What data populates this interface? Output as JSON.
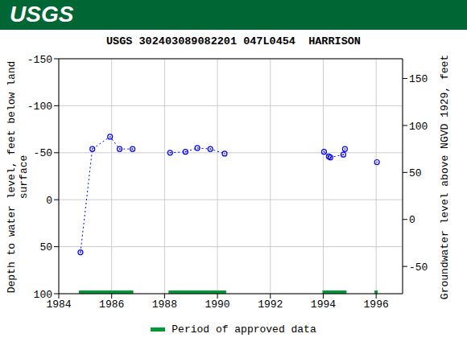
{
  "chart_data": {
    "type": "line",
    "header": "USGS",
    "title": "USGS 302403089082201 047L0454  HARRISON",
    "ylabel": "Depth to water level, feet below land surface",
    "y2label": "Groundwater level above NGVD 1929, feet",
    "xlim": [
      1984,
      1997
    ],
    "xticks": [
      1984,
      1986,
      1988,
      1990,
      1992,
      1994,
      1996
    ],
    "ylim": [
      100,
      -150
    ],
    "yticks": [
      -150,
      -100,
      -50,
      0,
      50,
      100
    ],
    "y2lim": [
      -79,
      171
    ],
    "y2ticks": [
      -50,
      0,
      50,
      100,
      150
    ],
    "grid": true,
    "series": [
      {
        "x": [
          1984.82,
          1985.27,
          1985.94,
          1986.3,
          1986.79
        ],
        "values": [
          56,
          -54,
          -67,
          -54,
          -54
        ],
        "color": "#0000ff",
        "marker": "circle",
        "line_style": "dotted"
      },
      {
        "x": [
          1988.21,
          1988.79,
          1989.24,
          1989.73,
          1990.27
        ],
        "values": [
          -50,
          -51,
          -55,
          -54,
          -49
        ],
        "color": "#0000ff",
        "marker": "circle",
        "line_style": "dotted"
      },
      {
        "x": [
          1994.03,
          1994.21,
          1994.27,
          1994.76,
          1994.82
        ],
        "values": [
          -51,
          -46,
          -45,
          -48,
          -54
        ],
        "color": "#0000ff",
        "marker": "circle",
        "line_style": "dotted"
      },
      {
        "x": [
          1996.03
        ],
        "values": [
          -40
        ],
        "color": "#0000ff",
        "marker": "circle",
        "line_style": "dotted"
      },
      {
        "name": "Period of approved data",
        "type": "period",
        "color": "#009933",
        "periods": [
          [
            1984.76,
            1986.82
          ],
          [
            1988.15,
            1990.33
          ],
          [
            1993.97,
            1994.88
          ],
          [
            1995.94,
            1996.06
          ]
        ]
      }
    ]
  }
}
